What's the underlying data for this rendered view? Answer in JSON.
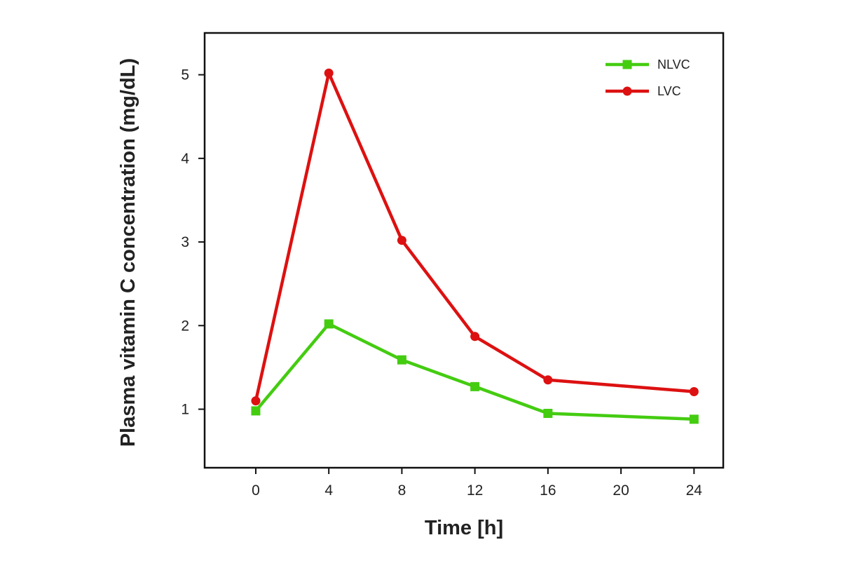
{
  "chart_data": {
    "type": "line",
    "title": "",
    "xlabel": "Time [h]",
    "ylabel": "Plasma vitamin C concentration (mg/dL)",
    "xlim": [
      -2.8,
      25.6
    ],
    "ylim": [
      0.3,
      5.5
    ],
    "x_ticks": [
      0,
      4,
      8,
      12,
      16,
      20,
      24
    ],
    "y_ticks": [
      1,
      2,
      3,
      4,
      5
    ],
    "grid": false,
    "legend_position": "top-right",
    "series": [
      {
        "name": "NLVC",
        "color": "#44cc11",
        "marker": "square",
        "x": [
          0,
          4,
          8,
          12,
          16,
          24
        ],
        "y": [
          0.98,
          2.02,
          1.59,
          1.27,
          0.95,
          0.88
        ]
      },
      {
        "name": "LVC",
        "color": "#dd1111",
        "marker": "circle",
        "x": [
          0,
          4,
          8,
          12,
          16,
          24
        ],
        "y": [
          1.1,
          5.02,
          3.02,
          1.87,
          1.35,
          1.21
        ]
      }
    ]
  }
}
